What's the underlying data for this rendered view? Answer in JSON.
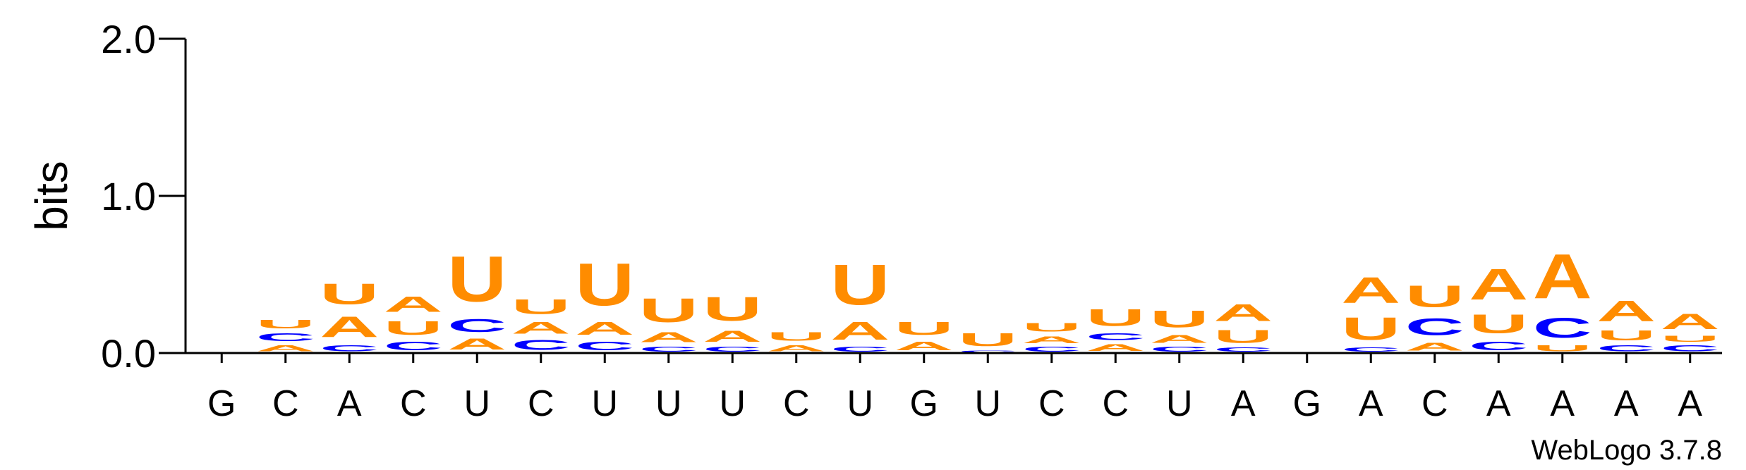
{
  "chart_data": {
    "type": "sequence-logo",
    "ylabel": "bits",
    "ylim": [
      0,
      2
    ],
    "yticks": [
      {
        "value": 0,
        "label": "0.0"
      },
      {
        "value": 1,
        "label": "1.0"
      },
      {
        "value": 2,
        "label": "2.0"
      }
    ],
    "credit": "WebLogo 3.7.8",
    "colors": {
      "A": "#ff8c00",
      "U": "#ff8c00",
      "C": "#0000ff",
      "G": "#ff8c00"
    },
    "positions": [
      {
        "label": "G",
        "stack": []
      },
      {
        "label": "C",
        "stack": [
          {
            "l": "A",
            "h": 0.06
          },
          {
            "l": "C",
            "h": 0.08
          },
          {
            "l": "U",
            "h": 0.09
          }
        ]
      },
      {
        "label": "A",
        "stack": [
          {
            "l": "C",
            "h": 0.06
          },
          {
            "l": "A",
            "h": 0.21
          },
          {
            "l": "U",
            "h": 0.21
          }
        ]
      },
      {
        "label": "C",
        "stack": [
          {
            "l": "C",
            "h": 0.09
          },
          {
            "l": "U",
            "h": 0.14
          },
          {
            "l": "A",
            "h": 0.16
          }
        ]
      },
      {
        "label": "U",
        "stack": [
          {
            "l": "A",
            "h": 0.11
          },
          {
            "l": "C",
            "h": 0.13
          },
          {
            "l": "U",
            "h": 0.46
          }
        ]
      },
      {
        "label": "C",
        "stack": [
          {
            "l": "C",
            "h": 0.1
          },
          {
            "l": "A",
            "h": 0.12
          },
          {
            "l": "U",
            "h": 0.15
          }
        ]
      },
      {
        "label": "U",
        "stack": [
          {
            "l": "C",
            "h": 0.09
          },
          {
            "l": "A",
            "h": 0.13
          },
          {
            "l": "U",
            "h": 0.43
          }
        ]
      },
      {
        "label": "U",
        "stack": [
          {
            "l": "C",
            "h": 0.05
          },
          {
            "l": "A",
            "h": 0.1
          },
          {
            "l": "U",
            "h": 0.24
          }
        ]
      },
      {
        "label": "U",
        "stack": [
          {
            "l": "C",
            "h": 0.05
          },
          {
            "l": "A",
            "h": 0.11
          },
          {
            "l": "U",
            "h": 0.24
          }
        ]
      },
      {
        "label": "C",
        "stack": [
          {
            "l": "A",
            "h": 0.06
          },
          {
            "l": "U",
            "h": 0.09
          }
        ]
      },
      {
        "label": "U",
        "stack": [
          {
            "l": "C",
            "h": 0.05
          },
          {
            "l": "A",
            "h": 0.18
          },
          {
            "l": "U",
            "h": 0.41
          }
        ]
      },
      {
        "label": "G",
        "stack": [
          {
            "l": "A",
            "h": 0.09
          },
          {
            "l": "U",
            "h": 0.13
          }
        ]
      },
      {
        "label": "U",
        "stack": [
          {
            "l": "C",
            "h": 0.02
          },
          {
            "l": "U",
            "h": 0.13
          }
        ]
      },
      {
        "label": "C",
        "stack": [
          {
            "l": "C",
            "h": 0.05
          },
          {
            "l": "A",
            "h": 0.07
          },
          {
            "l": "U",
            "h": 0.09
          }
        ]
      },
      {
        "label": "C",
        "stack": [
          {
            "l": "A",
            "h": 0.07
          },
          {
            "l": "C",
            "h": 0.07
          },
          {
            "l": "U",
            "h": 0.17
          }
        ]
      },
      {
        "label": "U",
        "stack": [
          {
            "l": "C",
            "h": 0.05
          },
          {
            "l": "A",
            "h": 0.08
          },
          {
            "l": "U",
            "h": 0.17
          }
        ]
      },
      {
        "label": "A",
        "stack": [
          {
            "l": "C",
            "h": 0.04
          },
          {
            "l": "U",
            "h": 0.13
          },
          {
            "l": "A",
            "h": 0.17
          }
        ]
      },
      {
        "label": "G",
        "stack": []
      },
      {
        "label": "A",
        "stack": [
          {
            "l": "C",
            "h": 0.04
          },
          {
            "l": "U",
            "h": 0.23
          },
          {
            "l": "A",
            "h": 0.26
          }
        ]
      },
      {
        "label": "C",
        "stack": [
          {
            "l": "A",
            "h": 0.08
          },
          {
            "l": "C",
            "h": 0.17
          },
          {
            "l": "U",
            "h": 0.22
          }
        ]
      },
      {
        "label": "A",
        "stack": [
          {
            "l": "C",
            "h": 0.09
          },
          {
            "l": "U",
            "h": 0.19
          },
          {
            "l": "A",
            "h": 0.31
          }
        ]
      },
      {
        "label": "A",
        "stack": [
          {
            "l": "U",
            "h": 0.06
          },
          {
            "l": "C",
            "h": 0.2
          },
          {
            "l": "A",
            "h": 0.45
          }
        ]
      },
      {
        "label": "A",
        "stack": [
          {
            "l": "C",
            "h": 0.06
          },
          {
            "l": "U",
            "h": 0.1
          },
          {
            "l": "A",
            "h": 0.21
          }
        ]
      },
      {
        "label": "A",
        "stack": [
          {
            "l": "C",
            "h": 0.06
          },
          {
            "l": "U",
            "h": 0.06
          },
          {
            "l": "A",
            "h": 0.16
          }
        ]
      }
    ]
  }
}
